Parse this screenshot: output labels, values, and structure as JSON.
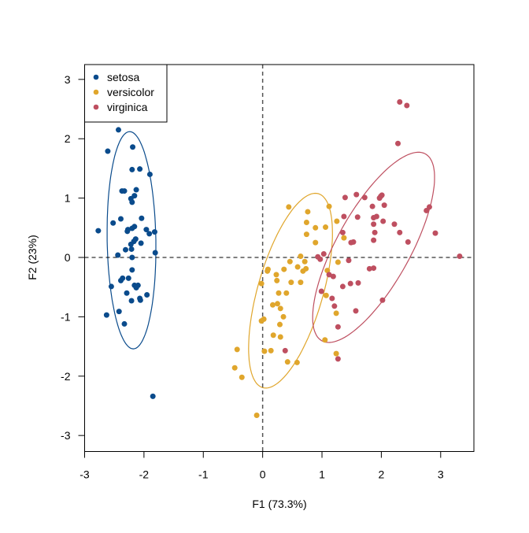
{
  "chart_data": {
    "type": "scatter",
    "xlabel": "F1 (73.3%)",
    "ylabel": "F2 (23%)",
    "xlim": [
      -3.0,
      3.56
    ],
    "ylim": [
      -3.27,
      3.25
    ],
    "xticks": [
      "-3",
      "-2",
      "-1",
      "0",
      "1",
      "2",
      "3"
    ],
    "yticks": [
      "-3",
      "-2",
      "-1",
      "0",
      "1",
      "2",
      "3"
    ],
    "reference_lines": {
      "x": 0,
      "y": 0,
      "style": "dashed"
    },
    "legend": {
      "position": "top-left",
      "entries": [
        "setosa",
        "versicolor",
        "virginica"
      ]
    },
    "series": [
      {
        "name": "setosa",
        "color": "#0A4B8C",
        "ellipse": {
          "center": [
            -2.21,
            0.29
          ],
          "semi_major": 1.83,
          "semi_minor": 0.41,
          "angle_deg": 91
        },
        "points": [
          [
            -2.43,
            2.15
          ],
          [
            -2.61,
            1.79
          ],
          [
            -2.19,
            1.86
          ],
          [
            -2.2,
            1.48
          ],
          [
            -2.07,
            1.49
          ],
          [
            -1.9,
            1.4
          ],
          [
            -2.37,
            1.12
          ],
          [
            -2.33,
            1.12
          ],
          [
            -2.13,
            1.14
          ],
          [
            -2.16,
            1.04
          ],
          [
            -2.22,
            0.99
          ],
          [
            -2.2,
            0.93
          ],
          [
            -2.52,
            0.58
          ],
          [
            -2.39,
            0.65
          ],
          [
            -2.04,
            0.66
          ],
          [
            -2.77,
            0.45
          ],
          [
            -2.27,
            0.47
          ],
          [
            -2.28,
            0.44
          ],
          [
            -2.16,
            0.52
          ],
          [
            -2.2,
            0.49
          ],
          [
            -1.96,
            0.47
          ],
          [
            -1.91,
            0.4
          ],
          [
            -1.82,
            0.43
          ],
          [
            -2.14,
            0.31
          ],
          [
            -2.17,
            0.27
          ],
          [
            -2.22,
            0.22
          ],
          [
            -2.05,
            0.24
          ],
          [
            -2.21,
            0.14
          ],
          [
            -2.31,
            0.13
          ],
          [
            -2.44,
            0.04
          ],
          [
            -1.81,
            0.08
          ],
          [
            -2.2,
            0.0
          ],
          [
            -2.2,
            -0.21
          ],
          [
            -2.36,
            -0.35
          ],
          [
            -2.39,
            -0.39
          ],
          [
            -2.26,
            -0.35
          ],
          [
            -2.55,
            -0.49
          ],
          [
            -2.16,
            -0.47
          ],
          [
            -2.1,
            -0.47
          ],
          [
            -2.13,
            -0.51
          ],
          [
            -2.29,
            -0.6
          ],
          [
            -1.95,
            -0.63
          ],
          [
            -2.21,
            -0.73
          ],
          [
            -2.07,
            -0.69
          ],
          [
            -2.06,
            -0.72
          ],
          [
            -2.42,
            -0.91
          ],
          [
            -2.63,
            -0.97
          ],
          [
            -2.33,
            -1.12
          ],
          [
            -1.85,
            -2.34
          ]
        ]
      },
      {
        "name": "versicolor",
        "color": "#E0A62C",
        "ellipse": {
          "center": [
            0.47,
            -0.56
          ],
          "semi_major": 1.7,
          "semi_minor": 0.55,
          "angle_deg": 74
        },
        "points": [
          [
            0.44,
            0.85
          ],
          [
            0.76,
            0.77
          ],
          [
            1.12,
            0.86
          ],
          [
            0.74,
            0.59
          ],
          [
            1.25,
            0.61
          ],
          [
            0.89,
            0.5
          ],
          [
            1.06,
            0.51
          ],
          [
            0.74,
            0.39
          ],
          [
            1.37,
            0.33
          ],
          [
            0.89,
            0.25
          ],
          [
            0.64,
            0.02
          ],
          [
            0.71,
            -0.07
          ],
          [
            0.46,
            -0.07
          ],
          [
            1.27,
            -0.08
          ],
          [
            0.59,
            -0.16
          ],
          [
            0.73,
            -0.19
          ],
          [
            0.68,
            -0.23
          ],
          [
            0.09,
            -0.2
          ],
          [
            0.08,
            -0.23
          ],
          [
            0.36,
            -0.2
          ],
          [
            0.23,
            -0.29
          ],
          [
            1.09,
            -0.22
          ],
          [
            0.24,
            -0.39
          ],
          [
            -0.02,
            -0.44
          ],
          [
            0.48,
            -0.42
          ],
          [
            0.64,
            -0.42
          ],
          [
            0.27,
            -0.6
          ],
          [
            0.4,
            -0.6
          ],
          [
            1.07,
            -0.64
          ],
          [
            0.17,
            -0.8
          ],
          [
            0.25,
            -0.78
          ],
          [
            0.3,
            -0.86
          ],
          [
            1.24,
            -0.94
          ],
          [
            0.35,
            -1.0
          ],
          [
            -0.02,
            -1.07
          ],
          [
            0.02,
            -1.04
          ],
          [
            0.29,
            -1.13
          ],
          [
            0.18,
            -1.31
          ],
          [
            0.3,
            -1.34
          ],
          [
            1.05,
            -1.39
          ],
          [
            -0.43,
            -1.55
          ],
          [
            0.03,
            -1.58
          ],
          [
            0.14,
            -1.57
          ],
          [
            1.24,
            -1.62
          ],
          [
            0.42,
            -1.76
          ],
          [
            0.58,
            -1.77
          ],
          [
            -0.47,
            -1.86
          ],
          [
            -0.35,
            -2.02
          ],
          [
            -0.1,
            -2.66
          ]
        ]
      },
      {
        "name": "virginica",
        "color": "#BE4F60",
        "ellipse": {
          "center": [
            1.87,
            0.17
          ],
          "semi_major": 1.8,
          "semi_minor": 0.62,
          "angle_deg": 61
        },
        "points": [
          [
            2.31,
            2.62
          ],
          [
            2.43,
            2.56
          ],
          [
            2.28,
            1.92
          ],
          [
            1.58,
            1.06
          ],
          [
            1.72,
            1.01
          ],
          [
            1.99,
            1.03
          ],
          [
            2.01,
            1.05
          ],
          [
            1.97,
            1.0
          ],
          [
            1.39,
            1.01
          ],
          [
            1.85,
            0.86
          ],
          [
            2.05,
            0.88
          ],
          [
            2.81,
            0.85
          ],
          [
            2.76,
            0.79
          ],
          [
            1.6,
            0.68
          ],
          [
            1.87,
            0.67
          ],
          [
            1.92,
            0.69
          ],
          [
            1.37,
            0.69
          ],
          [
            2.03,
            0.61
          ],
          [
            1.87,
            0.56
          ],
          [
            2.22,
            0.56
          ],
          [
            2.31,
            0.42
          ],
          [
            2.91,
            0.41
          ],
          [
            1.89,
            0.42
          ],
          [
            1.35,
            0.42
          ],
          [
            1.87,
            0.29
          ],
          [
            1.49,
            0.25
          ],
          [
            1.53,
            0.26
          ],
          [
            2.45,
            0.26
          ],
          [
            1.03,
            0.06
          ],
          [
            0.93,
            0.01
          ],
          [
            0.97,
            -0.03
          ],
          [
            1.45,
            -0.05
          ],
          [
            3.32,
            0.02
          ],
          [
            1.8,
            -0.19
          ],
          [
            1.87,
            -0.18
          ],
          [
            1.12,
            -0.29
          ],
          [
            1.19,
            -0.32
          ],
          [
            1.35,
            -0.49
          ],
          [
            1.48,
            -0.44
          ],
          [
            1.61,
            -0.43
          ],
          [
            0.99,
            -0.57
          ],
          [
            1.17,
            -0.69
          ],
          [
            2.02,
            -0.72
          ],
          [
            1.21,
            -0.82
          ],
          [
            1.57,
            -0.9
          ],
          [
            1.27,
            -1.17
          ],
          [
            0.38,
            -1.57
          ],
          [
            1.27,
            -1.71
          ]
        ]
      }
    ]
  }
}
